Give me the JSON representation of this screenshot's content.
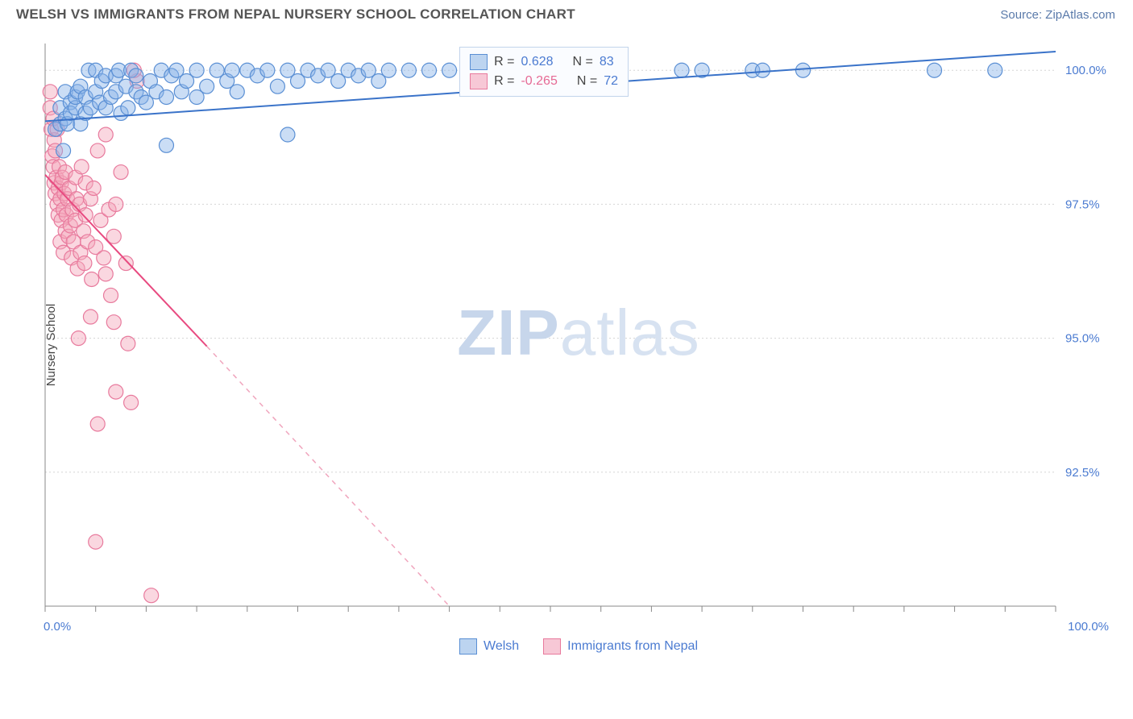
{
  "header": {
    "title": "WELSH VS IMMIGRANTS FROM NEPAL NURSERY SCHOOL CORRELATION CHART",
    "source_label": "Source: ",
    "source_name": "ZipAtlas.com"
  },
  "chart": {
    "type": "scatter",
    "ylabel": "Nursery School",
    "xlim": [
      0,
      100
    ],
    "ylim": [
      90,
      100.5
    ],
    "y_ticks": [
      {
        "v": 92.5,
        "label": "92.5%"
      },
      {
        "v": 95.0,
        "label": "95.0%"
      },
      {
        "v": 97.5,
        "label": "97.5%"
      },
      {
        "v": 100.0,
        "label": "100.0%"
      }
    ],
    "x_axis_labels": {
      "left": "0.0%",
      "right": "100.0%"
    },
    "x_minor_ticks_count": 21,
    "gridline_color": "#d5d5d5",
    "axis_color": "#888888",
    "background_color": "#ffffff",
    "marker_radius": 9,
    "series": {
      "welsh": {
        "label": "Welsh",
        "color_fill": "#8ab4e8",
        "color_stroke": "#5a8fd4",
        "R": "0.628",
        "N": "83",
        "trend": {
          "x1": 0,
          "y1": 99.05,
          "x2": 100,
          "y2": 100.35,
          "color": "#3a73c9"
        },
        "points": [
          [
            1,
            98.9
          ],
          [
            1.5,
            99.0
          ],
          [
            1.5,
            99.3
          ],
          [
            1.8,
            98.5
          ],
          [
            2,
            99.1
          ],
          [
            2,
            99.6
          ],
          [
            2.2,
            99.0
          ],
          [
            2.5,
            99.4
          ],
          [
            2.5,
            99.2
          ],
          [
            3,
            99.3
          ],
          [
            3,
            99.5
          ],
          [
            3.2,
            99.6
          ],
          [
            3.5,
            99.0
          ],
          [
            3.5,
            99.7
          ],
          [
            4,
            99.2
          ],
          [
            4,
            99.5
          ],
          [
            4.3,
            100.0
          ],
          [
            4.5,
            99.3
          ],
          [
            5,
            99.6
          ],
          [
            5,
            100.0
          ],
          [
            5.4,
            99.4
          ],
          [
            5.6,
            99.8
          ],
          [
            6,
            99.3
          ],
          [
            6,
            99.9
          ],
          [
            6.5,
            99.5
          ],
          [
            7,
            99.6
          ],
          [
            7,
            99.9
          ],
          [
            7.3,
            100.0
          ],
          [
            7.5,
            99.2
          ],
          [
            8,
            99.7
          ],
          [
            8.2,
            99.3
          ],
          [
            8.5,
            100.0
          ],
          [
            9,
            99.6
          ],
          [
            9,
            99.9
          ],
          [
            9.5,
            99.5
          ],
          [
            10,
            99.4
          ],
          [
            10.4,
            99.8
          ],
          [
            11,
            99.6
          ],
          [
            11.5,
            100.0
          ],
          [
            12,
            99.5
          ],
          [
            12,
            98.6
          ],
          [
            12.5,
            99.9
          ],
          [
            13,
            100.0
          ],
          [
            13.5,
            99.6
          ],
          [
            14,
            99.8
          ],
          [
            15,
            100.0
          ],
          [
            15,
            99.5
          ],
          [
            16,
            99.7
          ],
          [
            17,
            100.0
          ],
          [
            18,
            99.8
          ],
          [
            18.5,
            100.0
          ],
          [
            19,
            99.6
          ],
          [
            20,
            100.0
          ],
          [
            21,
            99.9
          ],
          [
            22,
            100.0
          ],
          [
            23,
            99.7
          ],
          [
            24,
            100.0
          ],
          [
            25,
            99.8
          ],
          [
            24,
            98.8
          ],
          [
            26,
            100.0
          ],
          [
            27,
            99.9
          ],
          [
            28,
            100.0
          ],
          [
            29,
            99.8
          ],
          [
            30,
            100.0
          ],
          [
            31,
            99.9
          ],
          [
            32,
            100.0
          ],
          [
            33,
            99.8
          ],
          [
            34,
            100.0
          ],
          [
            36,
            100.0
          ],
          [
            38,
            100.0
          ],
          [
            40,
            100.0
          ],
          [
            42,
            99.9
          ],
          [
            45,
            100.0
          ],
          [
            48,
            100.0
          ],
          [
            50,
            100.0
          ],
          [
            55,
            100.0
          ],
          [
            63,
            100.0
          ],
          [
            65,
            100.0
          ],
          [
            70,
            100.0
          ],
          [
            71,
            100.0
          ],
          [
            75,
            100.0
          ],
          [
            88,
            100.0
          ],
          [
            94,
            100.0
          ]
        ]
      },
      "nepal": {
        "label": "Immigants from Nepal",
        "label_fixed": "Immigrants from Nepal",
        "color_fill": "#f5a6bb",
        "color_stroke": "#e87a9d",
        "R": "-0.265",
        "N": "72",
        "trend_solid": {
          "x1": 0,
          "y1": 98.05,
          "x2": 16,
          "y2": 94.85,
          "color": "#e84a80"
        },
        "trend_dash": {
          "x1": 16,
          "y1": 94.85,
          "x2": 40,
          "y2": 90.0,
          "color": "#f0a5bd"
        },
        "points": [
          [
            0.5,
            99.6
          ],
          [
            0.5,
            99.3
          ],
          [
            0.6,
            98.9
          ],
          [
            0.7,
            98.4
          ],
          [
            0.8,
            99.1
          ],
          [
            0.8,
            98.2
          ],
          [
            0.9,
            97.9
          ],
          [
            0.9,
            98.7
          ],
          [
            1.0,
            97.7
          ],
          [
            1.0,
            98.5
          ],
          [
            1.1,
            98.0
          ],
          [
            1.2,
            97.5
          ],
          [
            1.2,
            98.9
          ],
          [
            1.3,
            97.8
          ],
          [
            1.3,
            97.3
          ],
          [
            1.4,
            98.2
          ],
          [
            1.5,
            97.6
          ],
          [
            1.5,
            96.8
          ],
          [
            1.6,
            97.9
          ],
          [
            1.6,
            97.2
          ],
          [
            1.7,
            98.0
          ],
          [
            1.8,
            97.4
          ],
          [
            1.8,
            96.6
          ],
          [
            1.9,
            97.7
          ],
          [
            2.0,
            97.0
          ],
          [
            2.0,
            98.1
          ],
          [
            2.1,
            97.3
          ],
          [
            2.2,
            97.6
          ],
          [
            2.3,
            96.9
          ],
          [
            2.4,
            97.8
          ],
          [
            2.5,
            97.1
          ],
          [
            2.6,
            96.5
          ],
          [
            2.7,
            97.4
          ],
          [
            2.8,
            96.8
          ],
          [
            3.0,
            97.2
          ],
          [
            3.0,
            98.0
          ],
          [
            3.1,
            97.6
          ],
          [
            3.2,
            96.3
          ],
          [
            3.4,
            97.5
          ],
          [
            3.5,
            96.6
          ],
          [
            3.6,
            98.2
          ],
          [
            3.8,
            97.0
          ],
          [
            3.9,
            96.4
          ],
          [
            4.0,
            97.3
          ],
          [
            4.0,
            97.9
          ],
          [
            4.2,
            96.8
          ],
          [
            4.5,
            97.6
          ],
          [
            4.6,
            96.1
          ],
          [
            4.8,
            97.8
          ],
          [
            5.0,
            96.7
          ],
          [
            5.2,
            98.5
          ],
          [
            5.5,
            97.2
          ],
          [
            5.8,
            96.5
          ],
          [
            6.0,
            98.8
          ],
          [
            6.0,
            96.2
          ],
          [
            6.3,
            97.4
          ],
          [
            6.5,
            95.8
          ],
          [
            6.8,
            96.9
          ],
          [
            7.0,
            97.5
          ],
          [
            7.5,
            98.1
          ],
          [
            8.0,
            96.4
          ],
          [
            6.8,
            95.3
          ],
          [
            8.2,
            94.9
          ],
          [
            7.0,
            94.0
          ],
          [
            8.5,
            93.8
          ],
          [
            5.2,
            93.4
          ],
          [
            5.0,
            91.2
          ],
          [
            10.5,
            90.2
          ],
          [
            9.1,
            99.8
          ],
          [
            8.8,
            100.0
          ],
          [
            4.5,
            95.4
          ],
          [
            3.3,
            95.0
          ]
        ]
      }
    },
    "legend_top": {
      "r_label": "R =",
      "n_label": "N =",
      "box_bg": "#fafcff",
      "box_border": "#c2d4eb"
    },
    "watermark": {
      "zip": "ZIP",
      "atlas": "atlas"
    }
  }
}
